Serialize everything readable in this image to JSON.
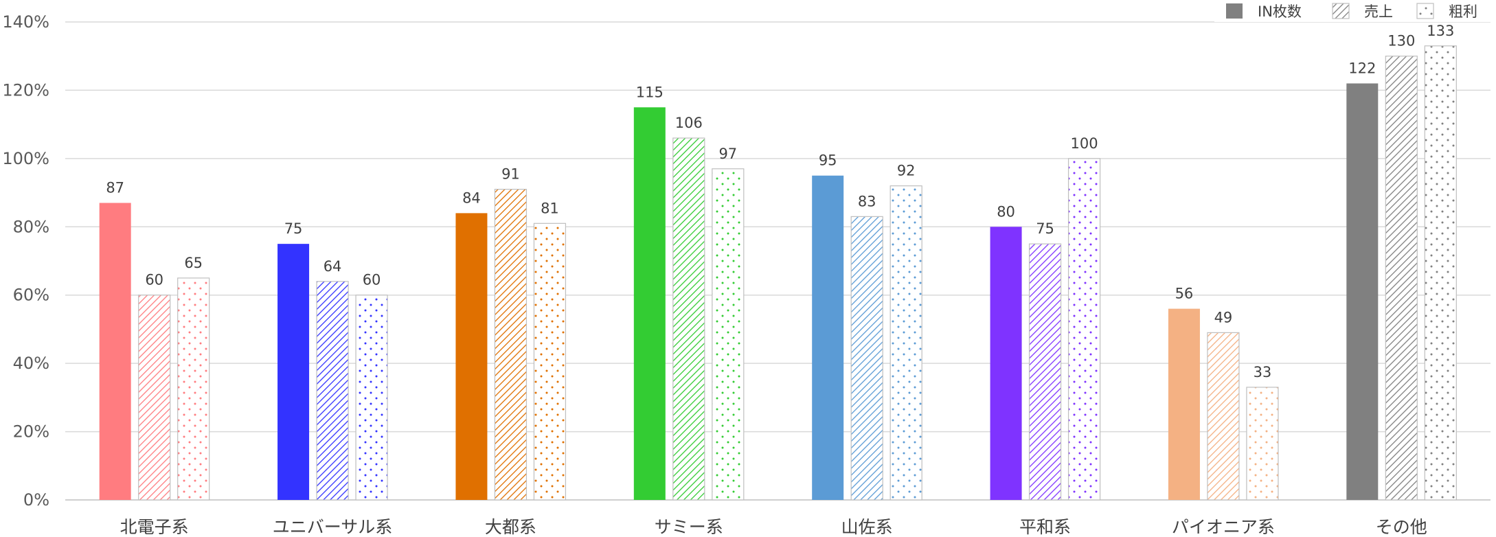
{
  "chart_data": {
    "type": "bar",
    "categories": [
      "北電子系",
      "ユニバーサル系",
      "大都系",
      "サミー系",
      "山佐系",
      "平和系",
      "パイオニア系",
      "その他"
    ],
    "category_colors": [
      "#ff7c80",
      "#3333ff",
      "#e07000",
      "#33cc33",
      "#5b9bd5",
      "#7f33ff",
      "#f4b183",
      "#808080"
    ],
    "series": [
      {
        "name": "IN枚数",
        "pattern": "solid",
        "values": [
          87,
          75,
          84,
          115,
          95,
          80,
          56,
          122
        ]
      },
      {
        "name": "売上",
        "pattern": "diagonal",
        "values": [
          60,
          64,
          91,
          106,
          83,
          75,
          49,
          130
        ]
      },
      {
        "name": "粗利",
        "pattern": "dotted",
        "values": [
          65,
          60,
          81,
          97,
          92,
          100,
          33,
          133
        ]
      }
    ],
    "y_axis": {
      "ticks": [
        0,
        20,
        40,
        60,
        80,
        100,
        120,
        140
      ],
      "tick_labels": [
        "0%",
        "20%",
        "40%",
        "60%",
        "80%",
        "100%",
        "120%",
        "140%"
      ],
      "ylim": [
        0,
        140
      ]
    },
    "grid": true,
    "legend_position": "top-right",
    "data_labels": true
  }
}
